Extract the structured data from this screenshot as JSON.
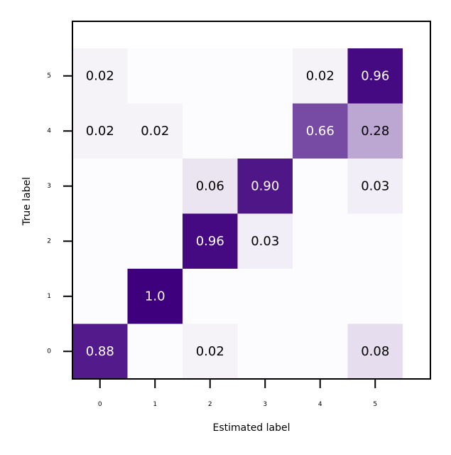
{
  "chart_data": {
    "type": "heatmap",
    "title": "",
    "xlabel": "Estimated label",
    "ylabel": "True label",
    "x_categories": [
      "0",
      "1",
      "2",
      "3",
      "4",
      "5"
    ],
    "y_categories": [
      "0",
      "1",
      "2",
      "3",
      "4",
      "5"
    ],
    "colormap": "Purples",
    "color_low": "#fcfbfd",
    "color_high": "#3f007d",
    "grid": false,
    "legend": "none",
    "cells": [
      {
        "true": "0",
        "estimated": "0",
        "value": 0.88,
        "label": "0.88"
      },
      {
        "true": "0",
        "estimated": "1",
        "value": 0.0,
        "label": ""
      },
      {
        "true": "0",
        "estimated": "2",
        "value": 0.02,
        "label": "0.02"
      },
      {
        "true": "0",
        "estimated": "3",
        "value": 0.0,
        "label": ""
      },
      {
        "true": "0",
        "estimated": "4",
        "value": 0.0,
        "label": ""
      },
      {
        "true": "0",
        "estimated": "5",
        "value": 0.08,
        "label": "0.08"
      },
      {
        "true": "1",
        "estimated": "0",
        "value": 0.0,
        "label": ""
      },
      {
        "true": "1",
        "estimated": "1",
        "value": 1.0,
        "label": "1.0"
      },
      {
        "true": "1",
        "estimated": "2",
        "value": 0.0,
        "label": ""
      },
      {
        "true": "1",
        "estimated": "3",
        "value": 0.0,
        "label": ""
      },
      {
        "true": "1",
        "estimated": "4",
        "value": 0.0,
        "label": ""
      },
      {
        "true": "1",
        "estimated": "5",
        "value": 0.0,
        "label": ""
      },
      {
        "true": "2",
        "estimated": "0",
        "value": 0.0,
        "label": ""
      },
      {
        "true": "2",
        "estimated": "1",
        "value": 0.0,
        "label": ""
      },
      {
        "true": "2",
        "estimated": "2",
        "value": 0.96,
        "label": "0.96"
      },
      {
        "true": "2",
        "estimated": "3",
        "value": 0.03,
        "label": "0.03"
      },
      {
        "true": "2",
        "estimated": "4",
        "value": 0.0,
        "label": ""
      },
      {
        "true": "2",
        "estimated": "5",
        "value": 0.0,
        "label": ""
      },
      {
        "true": "3",
        "estimated": "0",
        "value": 0.0,
        "label": ""
      },
      {
        "true": "3",
        "estimated": "1",
        "value": 0.0,
        "label": ""
      },
      {
        "true": "3",
        "estimated": "2",
        "value": 0.06,
        "label": "0.06"
      },
      {
        "true": "3",
        "estimated": "3",
        "value": 0.9,
        "label": "0.90"
      },
      {
        "true": "3",
        "estimated": "4",
        "value": 0.0,
        "label": ""
      },
      {
        "true": "3",
        "estimated": "5",
        "value": 0.03,
        "label": "0.03"
      },
      {
        "true": "4",
        "estimated": "0",
        "value": 0.02,
        "label": "0.02"
      },
      {
        "true": "4",
        "estimated": "1",
        "value": 0.02,
        "label": "0.02"
      },
      {
        "true": "4",
        "estimated": "2",
        "value": 0.0,
        "label": ""
      },
      {
        "true": "4",
        "estimated": "3",
        "value": 0.0,
        "label": ""
      },
      {
        "true": "4",
        "estimated": "4",
        "value": 0.66,
        "label": "0.66"
      },
      {
        "true": "4",
        "estimated": "5",
        "value": 0.28,
        "label": "0.28"
      },
      {
        "true": "5",
        "estimated": "0",
        "value": 0.02,
        "label": "0.02"
      },
      {
        "true": "5",
        "estimated": "1",
        "value": 0.0,
        "label": ""
      },
      {
        "true": "5",
        "estimated": "2",
        "value": 0.0,
        "label": ""
      },
      {
        "true": "5",
        "estimated": "3",
        "value": 0.0,
        "label": ""
      },
      {
        "true": "5",
        "estimated": "4",
        "value": 0.02,
        "label": "0.02"
      },
      {
        "true": "5",
        "estimated": "5",
        "value": 0.96,
        "label": "0.96"
      }
    ]
  }
}
